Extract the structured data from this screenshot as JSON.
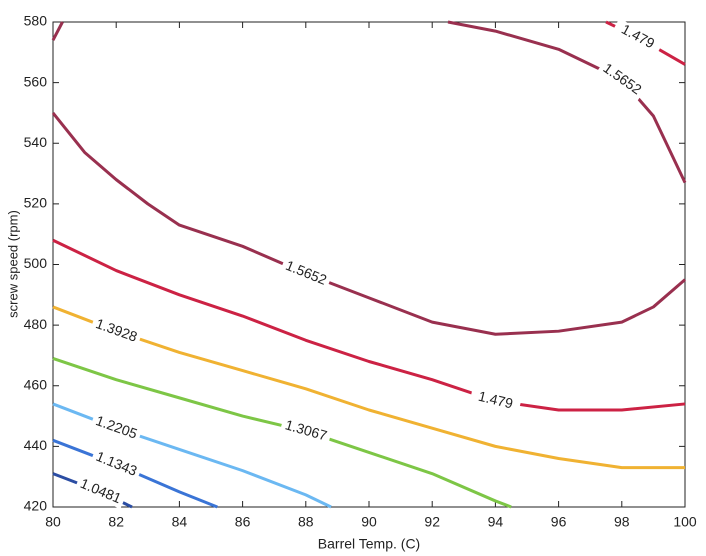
{
  "chart_data": {
    "type": "contour",
    "x_label": "Barrel Temp. (C)",
    "y_label": "screw speed (rpm)",
    "xlim": [
      80,
      100
    ],
    "xticks": [
      80,
      82,
      84,
      86,
      88,
      90,
      92,
      94,
      96,
      98,
      100
    ],
    "ylim": [
      420,
      580
    ],
    "yticks": [
      420,
      440,
      460,
      480,
      500,
      520,
      540,
      560,
      580
    ],
    "series": [
      {
        "name": "1.0481",
        "color": "#2b4da3",
        "x": [
          80,
          81.5,
          82.5
        ],
        "values": [
          431,
          425,
          420
        ]
      },
      {
        "name": "1.1343",
        "color": "#3a74d6",
        "x": [
          80,
          82,
          84,
          85.2
        ],
        "values": [
          442,
          434,
          425,
          420
        ]
      },
      {
        "name": "1.2205",
        "color": "#6bb8f2",
        "x": [
          80,
          82,
          84,
          86,
          88,
          88.8
        ],
        "values": [
          454,
          446,
          439,
          432,
          424,
          420
        ]
      },
      {
        "name": "1.3067",
        "color": "#7dc646",
        "x": [
          80,
          82,
          84,
          86,
          88,
          90,
          92,
          94,
          94.5
        ],
        "values": [
          469,
          462,
          456,
          450,
          445,
          438,
          431,
          422,
          420
        ]
      },
      {
        "name": "1.3928",
        "color": "#f0b232",
        "x": [
          80,
          82,
          84,
          86,
          88,
          90,
          92,
          94,
          96,
          98,
          100
        ],
        "values": [
          486,
          478,
          471,
          465,
          459,
          452,
          446,
          440,
          436,
          433,
          433
        ]
      },
      {
        "name": "1.479",
        "color": "#cc2244",
        "x": [
          80,
          82,
          84,
          86,
          88,
          90,
          92,
          94,
          96,
          98,
          100,
          null,
          97.5,
          98.5,
          100
        ],
        "values": [
          508,
          498,
          490,
          483,
          475,
          468,
          462,
          455,
          452,
          452,
          454,
          null,
          580,
          575,
          566
        ]
      },
      {
        "name": "1.5652",
        "color": "#99304f",
        "x": [
          80.3,
          80,
          null,
          80,
          81,
          82,
          83,
          84,
          86,
          88,
          90,
          92,
          94,
          96,
          98,
          99,
          100,
          null,
          92.5,
          94,
          96,
          98,
          99,
          100
        ],
        "values": [
          580,
          574,
          null,
          550,
          537,
          528,
          520,
          513,
          506,
          497,
          489,
          481,
          477,
          478,
          481,
          486,
          495,
          null,
          580,
          577,
          571,
          561,
          549,
          527
        ]
      }
    ]
  }
}
